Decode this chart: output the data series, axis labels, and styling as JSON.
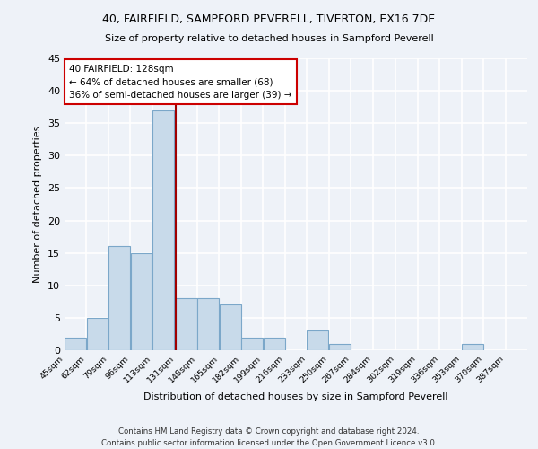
{
  "title": "40, FAIRFIELD, SAMPFORD PEVERELL, TIVERTON, EX16 7DE",
  "subtitle": "Size of property relative to detached houses in Sampford Peverell",
  "xlabel": "Distribution of detached houses by size in Sampford Peverell",
  "ylabel": "Number of detached properties",
  "bin_labels": [
    "45sqm",
    "62sqm",
    "79sqm",
    "96sqm",
    "113sqm",
    "131sqm",
    "148sqm",
    "165sqm",
    "182sqm",
    "199sqm",
    "216sqm",
    "233sqm",
    "250sqm",
    "267sqm",
    "284sqm",
    "302sqm",
    "319sqm",
    "336sqm",
    "353sqm",
    "370sqm",
    "387sqm"
  ],
  "bin_edges": [
    45,
    62,
    79,
    96,
    113,
    131,
    148,
    165,
    182,
    199,
    216,
    233,
    250,
    267,
    284,
    302,
    319,
    336,
    353,
    370,
    387
  ],
  "bar_heights": [
    2,
    5,
    16,
    15,
    37,
    8,
    8,
    7,
    2,
    2,
    0,
    3,
    1,
    0,
    0,
    0,
    0,
    0,
    1,
    0,
    0
  ],
  "bar_color": "#c8daea",
  "bar_edgecolor": "#7ba7c9",
  "vline_x": 131,
  "vline_color": "#a00000",
  "annotation_title": "40 FAIRFIELD: 128sqm",
  "annotation_line1": "← 64% of detached houses are smaller (68)",
  "annotation_line2": "36% of semi-detached houses are larger (39) →",
  "annotation_box_facecolor": "#ffffff",
  "annotation_box_edgecolor": "#cc0000",
  "ylim": [
    0,
    45
  ],
  "yticks": [
    0,
    5,
    10,
    15,
    20,
    25,
    30,
    35,
    40,
    45
  ],
  "footer_line1": "Contains HM Land Registry data © Crown copyright and database right 2024.",
  "footer_line2": "Contains public sector information licensed under the Open Government Licence v3.0.",
  "bg_color": "#eef2f8",
  "grid_color": "#ffffff"
}
